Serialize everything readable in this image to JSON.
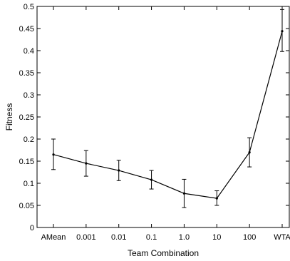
{
  "chart_data": {
    "type": "line",
    "xlabel": "Team Combination",
    "ylabel": "Fitness",
    "categories": [
      "AMean",
      "0.001",
      "0.01",
      "0.1",
      "1.0",
      "10",
      "100",
      "WTA"
    ],
    "series": [
      {
        "values": [
          0.165,
          0.145,
          0.129,
          0.108,
          0.077,
          0.066,
          0.17,
          0.444
        ],
        "error_low": [
          0.131,
          0.116,
          0.106,
          0.087,
          0.045,
          0.05,
          0.137,
          0.398
        ],
        "error_high": [
          0.2,
          0.174,
          0.152,
          0.129,
          0.109,
          0.083,
          0.203,
          0.493
        ],
        "color": "#000000"
      }
    ],
    "ylim": [
      0,
      0.5
    ],
    "yticks": [
      0,
      0.05,
      0.1,
      0.15,
      0.2,
      0.25,
      0.3,
      0.35,
      0.4,
      0.45,
      0.5
    ],
    "ytick_labels": [
      "0",
      "0.05",
      "0.1",
      "0.15",
      "0.2",
      "0.25",
      "0.3",
      "0.35",
      "0.4",
      "0.45",
      "0.5"
    ],
    "grid": false,
    "legend": "none"
  }
}
